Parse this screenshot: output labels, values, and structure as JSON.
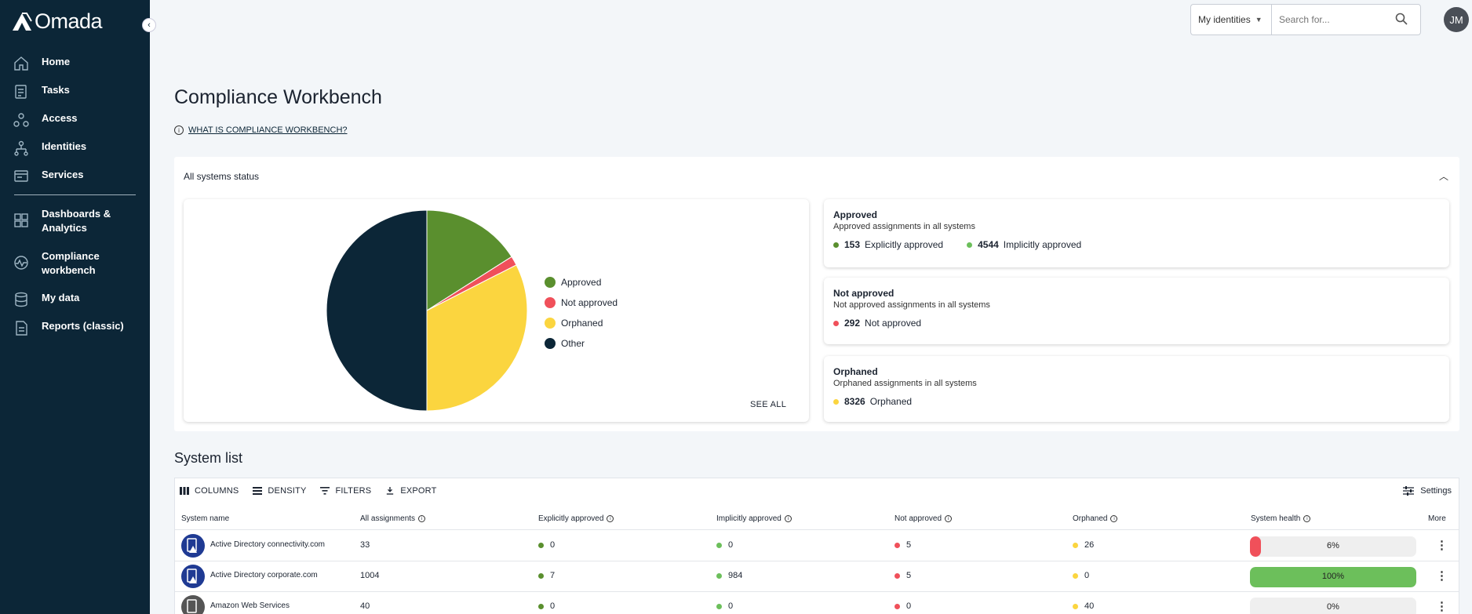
{
  "app": {
    "name": "Omada"
  },
  "sidebar": {
    "items": [
      {
        "label": "Home",
        "icon": "home-icon"
      },
      {
        "label": "Tasks",
        "icon": "tasks-icon"
      },
      {
        "label": "Access",
        "icon": "access-icon"
      },
      {
        "label": "Identities",
        "icon": "identities-icon"
      },
      {
        "label": "Services",
        "icon": "services-icon"
      },
      {
        "label": "Dashboards &\nAnalytics",
        "icon": "dashboard-icon"
      },
      {
        "label": "Compliance\nworkbench",
        "icon": "compliance-icon"
      },
      {
        "label": "My data",
        "icon": "my-data-icon"
      },
      {
        "label": "Reports (classic)",
        "icon": "reports-icon"
      }
    ]
  },
  "topbar": {
    "scope_select": "My identities",
    "search_placeholder": "Search for...",
    "avatar_initials": "JM"
  },
  "page": {
    "title": "Compliance Workbench",
    "info_link": "WHAT IS COMPLIANCE WORKBENCH?"
  },
  "status": {
    "title": "All systems status",
    "see_all": "SEE ALL",
    "legend": [
      {
        "label": "Approved",
        "color": "#5a8f2e"
      },
      {
        "label": "Not approved",
        "color": "#f0505a"
      },
      {
        "label": "Orphaned",
        "color": "#fbd53f"
      },
      {
        "label": "Other",
        "color": "#0c2637"
      }
    ],
    "cards": {
      "approved": {
        "title": "Approved",
        "subtitle": "Approved assignments in all systems",
        "explicit_num": "153",
        "explicit_label": "Explicitly approved",
        "implicit_num": "4544",
        "implicit_label": "Implicitly approved"
      },
      "not_approved": {
        "title": "Not approved",
        "subtitle": "Not approved assignments in all systems",
        "num": "292",
        "label": "Not approved"
      },
      "orphaned": {
        "title": "Orphaned",
        "subtitle": "Orphaned assignments in all systems",
        "num": "8326",
        "label": "Orphaned"
      }
    }
  },
  "chart_data": {
    "type": "pie",
    "labels": [
      "Approved",
      "Not approved",
      "Orphaned",
      "Other"
    ],
    "values": [
      16,
      1.5,
      32.5,
      50
    ],
    "colors": [
      "#5a8f2e",
      "#f0505a",
      "#fbd53f",
      "#0c2637"
    ]
  },
  "system_list": {
    "title": "System list",
    "toolbar": {
      "columns": "COLUMNS",
      "density": "DENSITY",
      "filters": "FILTERS",
      "export": "EXPORT",
      "settings": "Settings"
    },
    "headers": [
      "System name",
      "All assignments",
      "Explicitly approved",
      "Implicitly approved",
      "Not approved",
      "Orphaned",
      "System health",
      "More"
    ],
    "rows": [
      {
        "name": "Active Directory connectivity.com",
        "all": "33",
        "explicit": "0",
        "implicit": "0",
        "not_approved": "5",
        "orphaned": "26",
        "health": "6%",
        "health_value": 0.06,
        "health_color": "#f0505a",
        "icon": "active-directory-icon"
      },
      {
        "name": "Active Directory corporate.com",
        "all": "1004",
        "explicit": "7",
        "implicit": "984",
        "not_approved": "5",
        "orphaned": "0",
        "health": "100%",
        "health_value": 1.0,
        "health_color": "#6cbf5b",
        "icon": "active-directory-icon"
      },
      {
        "name": "Amazon Web Services",
        "all": "40",
        "explicit": "0",
        "implicit": "0",
        "not_approved": "0",
        "orphaned": "40",
        "health": "0%",
        "health_value": 0.0,
        "health_color": "#f0505a",
        "icon": "aws-icon"
      }
    ]
  }
}
